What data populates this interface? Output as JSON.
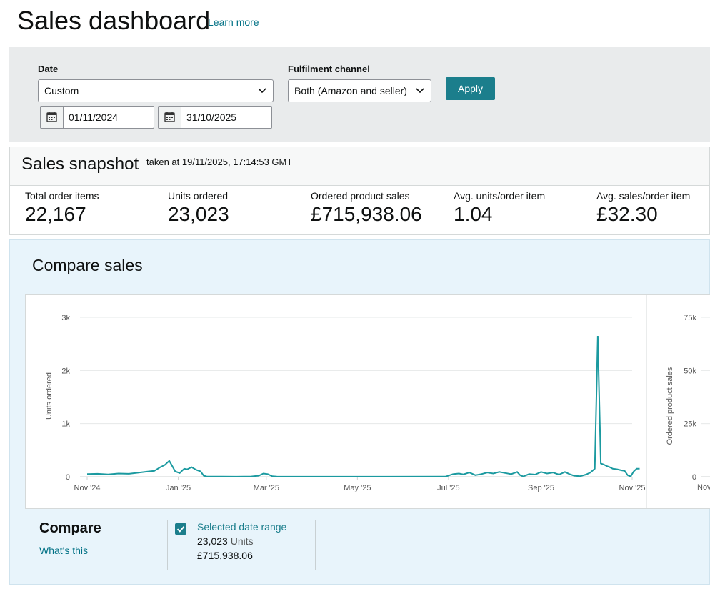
{
  "header": {
    "title": "Sales dashboard",
    "learn_more": "Learn more"
  },
  "filters": {
    "date_label": "Date",
    "date_preset": "Custom",
    "start_date": "01/11/2024",
    "end_date": "31/10/2025",
    "channel_label": "Fulfilment channel",
    "channel_value": "Both (Amazon and seller)",
    "apply_label": "Apply"
  },
  "snapshot": {
    "title": "Sales snapshot",
    "taken_at": "taken at 19/11/2025, 17:14:53 GMT",
    "metrics": [
      {
        "label": "Total order items",
        "value": "22,167"
      },
      {
        "label": "Units ordered",
        "value": "23,023"
      },
      {
        "label": "Ordered product sales",
        "value": "£715,938.06"
      },
      {
        "label": "Avg. units/order item",
        "value": "1.04"
      },
      {
        "label": "Avg. sales/order item",
        "value": "£32.30"
      }
    ]
  },
  "compare": {
    "title": "Compare sales",
    "legend_title": "Compare",
    "whats_this": "What's this",
    "range_label": "Selected date range",
    "range_units_value": "23,023",
    "range_units_unit": "Units",
    "range_sales": "£715,938.06",
    "series_color": "#1b9aa0",
    "checkbox_checked": true
  },
  "chart_data": {
    "type": "line",
    "ylabel": "Units ordered",
    "y_ticks": [
      "0",
      "1k",
      "2k",
      "3k"
    ],
    "ylim": [
      0,
      3000
    ],
    "x_ticks": [
      "Nov '24",
      "Jan '25",
      "Mar '25",
      "May '25",
      "Jul '25",
      "Sep '25",
      "Nov '25"
    ],
    "x_tick_days": [
      0,
      61,
      120,
      181,
      242,
      304,
      365
    ],
    "grid": true,
    "secondary_axis": {
      "label": "Ordered product sales",
      "ticks": [
        "0",
        "25k",
        "50k",
        "75k"
      ],
      "ylim": [
        0,
        75000
      ],
      "partial_x_tick": "Nov"
    },
    "series": [
      {
        "values_day_units": [
          [
            0,
            50
          ],
          [
            7,
            55
          ],
          [
            14,
            45
          ],
          [
            21,
            60
          ],
          [
            28,
            55
          ],
          [
            35,
            80
          ],
          [
            40,
            95
          ],
          [
            45,
            110
          ],
          [
            49,
            180
          ],
          [
            52,
            220
          ],
          [
            55,
            300
          ],
          [
            57,
            200
          ],
          [
            59,
            100
          ],
          [
            62,
            70
          ],
          [
            65,
            150
          ],
          [
            67,
            140
          ],
          [
            70,
            180
          ],
          [
            73,
            130
          ],
          [
            76,
            100
          ],
          [
            78,
            20
          ],
          [
            80,
            5
          ],
          [
            90,
            3
          ],
          [
            100,
            2
          ],
          [
            110,
            5
          ],
          [
            115,
            20
          ],
          [
            118,
            60
          ],
          [
            121,
            50
          ],
          [
            124,
            10
          ],
          [
            127,
            3
          ],
          [
            150,
            2
          ],
          [
            200,
            2
          ],
          [
            240,
            3
          ],
          [
            245,
            50
          ],
          [
            249,
            60
          ],
          [
            252,
            45
          ],
          [
            256,
            80
          ],
          [
            260,
            30
          ],
          [
            264,
            50
          ],
          [
            268,
            80
          ],
          [
            272,
            60
          ],
          [
            276,
            90
          ],
          [
            280,
            70
          ],
          [
            284,
            50
          ],
          [
            288,
            90
          ],
          [
            290,
            30
          ],
          [
            292,
            5
          ],
          [
            296,
            50
          ],
          [
            300,
            40
          ],
          [
            304,
            90
          ],
          [
            308,
            60
          ],
          [
            312,
            80
          ],
          [
            316,
            40
          ],
          [
            320,
            90
          ],
          [
            323,
            50
          ],
          [
            326,
            20
          ],
          [
            330,
            10
          ],
          [
            334,
            40
          ],
          [
            337,
            80
          ],
          [
            340,
            150
          ],
          [
            342,
            2650
          ],
          [
            344,
            250
          ],
          [
            346,
            230
          ],
          [
            348,
            200
          ],
          [
            350,
            180
          ],
          [
            352,
            150
          ],
          [
            355,
            140
          ],
          [
            358,
            120
          ],
          [
            360,
            110
          ],
          [
            362,
            30
          ],
          [
            364,
            5
          ],
          [
            366,
            100
          ],
          [
            368,
            150
          ],
          [
            370,
            150
          ]
        ]
      }
    ]
  }
}
